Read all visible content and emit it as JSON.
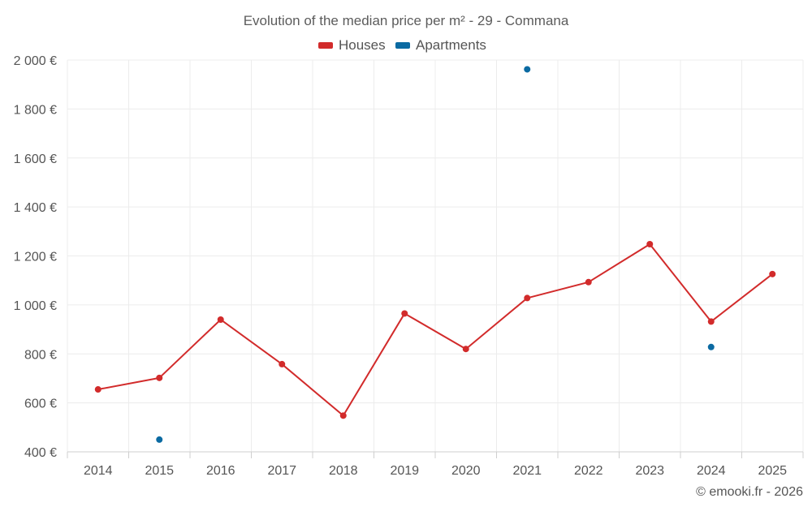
{
  "chart_data": {
    "type": "line",
    "title": "Evolution of the median price per m² - 29 - Commana",
    "categories": [
      "2014",
      "2015",
      "2016",
      "2017",
      "2018",
      "2019",
      "2020",
      "2021",
      "2022",
      "2023",
      "2024",
      "2025"
    ],
    "series": [
      {
        "name": "Houses",
        "color": "#d22b2b",
        "style": "line-with-markers",
        "values": [
          655,
          702,
          940,
          758,
          548,
          965,
          820,
          1028,
          1093,
          1248,
          932,
          1126
        ]
      },
      {
        "name": "Apartments",
        "color": "#0b6aa2",
        "style": "markers-only",
        "values": [
          null,
          450,
          null,
          null,
          null,
          null,
          null,
          1962,
          null,
          null,
          828,
          null
        ]
      }
    ],
    "ylim": [
      400,
      2000
    ],
    "yticks": [
      400,
      600,
      800,
      1000,
      1200,
      1400,
      1600,
      1800,
      2000
    ],
    "ytick_labels": [
      "400 €",
      "600 €",
      "800 €",
      "1 000 €",
      "1 200 €",
      "1 400 €",
      "1 600 €",
      "1 800 €",
      "2 000 €"
    ],
    "grid": true,
    "legend_position": "top-center",
    "credit": "© emooki.fr - 2026"
  }
}
